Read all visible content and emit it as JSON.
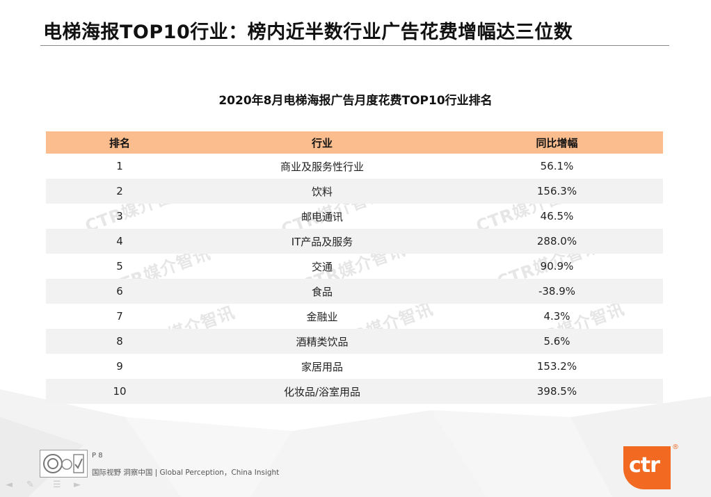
{
  "slide": {
    "title": "电梯海报TOP10行业：榜内近半数行业广告花费增幅达三位数",
    "table_caption": "2020年8月电梯海报广告月度花费TOP10行业排名"
  },
  "table": {
    "headers": [
      "排名",
      "行业",
      "同比增幅"
    ],
    "rows": [
      {
        "rank": "1",
        "industry": "商业及服务性行业",
        "growth": "56.1%"
      },
      {
        "rank": "2",
        "industry": "饮料",
        "growth": "156.3%"
      },
      {
        "rank": "3",
        "industry": "邮电通讯",
        "growth": "46.5%"
      },
      {
        "rank": "4",
        "industry": "IT产品及服务",
        "growth": "288.0%"
      },
      {
        "rank": "5",
        "industry": "交通",
        "growth": "90.9%"
      },
      {
        "rank": "6",
        "industry": "食品",
        "growth": "-38.9%"
      },
      {
        "rank": "7",
        "industry": "金融业",
        "growth": "4.3%"
      },
      {
        "rank": "8",
        "industry": "酒精类饮品",
        "growth": "5.6%"
      },
      {
        "rank": "9",
        "industry": "家居用品",
        "growth": "153.2%"
      },
      {
        "rank": "10",
        "industry": "化妆品/浴室用品",
        "growth": "398.5%"
      }
    ]
  },
  "watermark": {
    "text": "CTR媒介智讯"
  },
  "footer": {
    "page": "P 8",
    "tagline": "国际视野  洞察中国 |  Global Perception，China Insight",
    "logo_text": "ctr",
    "logo_mark": "®"
  },
  "colors": {
    "header_fill": "#fbbd8e",
    "row_stripe": "#f2f2f2",
    "brand_orange": "#f26a21"
  }
}
